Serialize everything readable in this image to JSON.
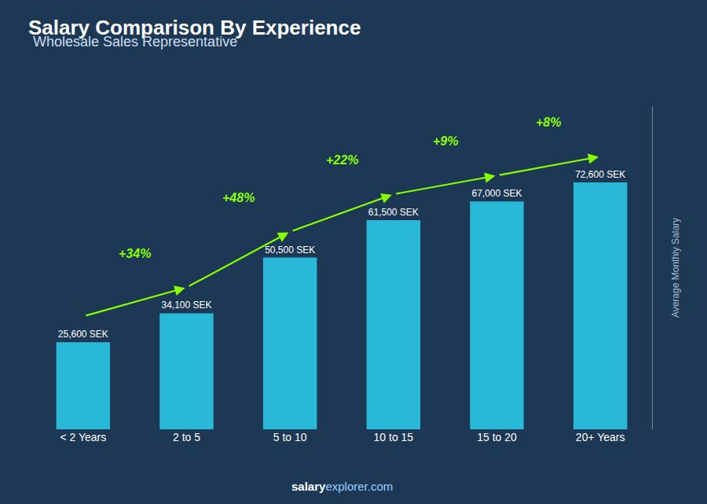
{
  "chart_data": {
    "type": "bar",
    "title": "Salary Comparison By Experience",
    "subtitle": "Wholesale Sales Representative",
    "ylabel": "Average Monthly Salary",
    "footer": [
      "salary",
      "explorer.com"
    ],
    "categories": [
      "< 2 Years",
      "2 to 5",
      "5 to 10",
      "10 to 15",
      "15 to 20",
      "20+ Years"
    ],
    "values": [
      25600,
      34100,
      50500,
      61500,
      67000,
      72600
    ],
    "value_labels": [
      "25,600 SEK",
      "34,100 SEK",
      "50,500 SEK",
      "61,500 SEK",
      "67,000 SEK",
      "72,600 SEK"
    ],
    "annotations": [
      "+34%",
      "+48%",
      "+22%",
      "+9%",
      "+8%"
    ],
    "color": "#29B8D8",
    "ylim": [
      0,
      95000
    ],
    "grid": false,
    "tick_labels": "x",
    "data_labels": true
  }
}
